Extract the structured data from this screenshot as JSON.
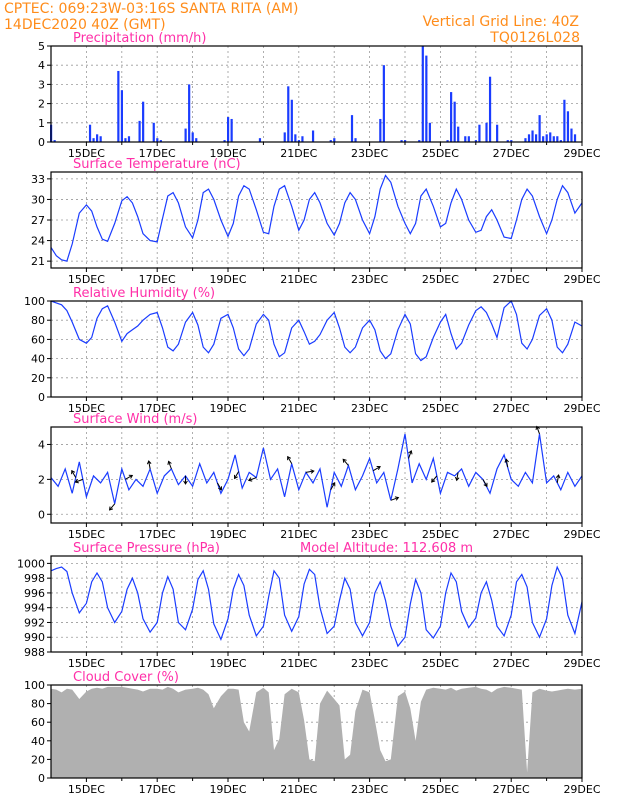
{
  "header": {
    "left_line1": "CPTEC:   069:23W-03:16S   SANTA RITA (AM)",
    "left_line2": "14DEC2020 40Z (GMT)",
    "right_line1": "Vertical Grid Line: 40Z",
    "right_line2": "TQ0126L028"
  },
  "colors": {
    "header": "#ff8c1a",
    "title": "#ff2fa8",
    "line": "#1a3cff",
    "cloud": "#b0b0b0"
  },
  "x_ticks": [
    "15DEC",
    "17DEC",
    "19DEC",
    "21DEC",
    "23DEC",
    "25DEC",
    "27DEC",
    "29DEC"
  ],
  "chart_data": [
    {
      "type": "bar",
      "title": "Precipitation (mm/h)",
      "ylim": [
        0,
        5
      ],
      "yticks": [
        "0",
        "1",
        "2",
        "3",
        "4",
        "5"
      ],
      "x_range_days": [
        14.0,
        29.0
      ],
      "x": [
        14.0,
        14.1,
        15.1,
        15.2,
        15.3,
        15.4,
        15.9,
        16.0,
        16.1,
        16.2,
        16.5,
        16.6,
        16.9,
        17.0,
        17.1,
        17.8,
        17.9,
        18.0,
        18.1,
        18.9,
        19.0,
        19.1,
        19.9,
        20.6,
        20.7,
        20.8,
        20.9,
        21.0,
        21.1,
        21.4,
        21.9,
        22.0,
        22.5,
        22.6,
        23.3,
        23.4,
        23.9,
        24.0,
        24.4,
        24.5,
        24.6,
        24.7,
        25.2,
        25.3,
        25.4,
        25.5,
        25.7,
        25.8,
        26.0,
        26.1,
        26.3,
        26.4,
        26.6,
        26.9,
        27.0,
        27.4,
        27.5,
        27.6,
        27.7,
        27.8,
        27.9,
        28.0,
        28.1,
        28.2,
        28.3,
        28.4,
        28.5,
        28.6,
        28.7,
        28.8
      ],
      "values": [
        0.9,
        0.1,
        0.9,
        0.2,
        0.4,
        0.3,
        3.7,
        2.7,
        0.2,
        0.3,
        1.1,
        2.1,
        1.0,
        0.2,
        0.1,
        0.7,
        3.0,
        0.5,
        0.2,
        0.1,
        1.3,
        1.2,
        0.2,
        0.5,
        2.9,
        2.2,
        0.4,
        0.1,
        0.3,
        0.6,
        0.1,
        0.2,
        1.4,
        0.2,
        1.2,
        4.0,
        0.1,
        0.1,
        0.1,
        5.0,
        4.5,
        1.0,
        0.1,
        2.6,
        2.1,
        0.8,
        0.3,
        0.3,
        0.1,
        0.9,
        1.0,
        3.4,
        0.9,
        0.1,
        0.1,
        0.2,
        0.4,
        0.6,
        0.4,
        1.4,
        0.3,
        0.4,
        0.5,
        0.3,
        0.3,
        0.1,
        2.2,
        1.6,
        0.7,
        0.4
      ]
    },
    {
      "type": "line",
      "title": "Surface Temperature (nC)",
      "ylim": [
        20,
        34
      ],
      "yticks": [
        "21",
        "24",
        "27",
        "30",
        "33"
      ],
      "x": [
        14.0,
        14.15,
        14.3,
        14.45,
        14.6,
        14.8,
        15.0,
        15.15,
        15.3,
        15.45,
        15.6,
        15.8,
        16.0,
        16.15,
        16.3,
        16.45,
        16.6,
        16.8,
        17.0,
        17.15,
        17.3,
        17.45,
        17.6,
        17.8,
        18.0,
        18.15,
        18.3,
        18.45,
        18.6,
        18.8,
        19.0,
        19.15,
        19.3,
        19.45,
        19.6,
        19.8,
        20.0,
        20.15,
        20.3,
        20.45,
        20.6,
        20.8,
        21.0,
        21.15,
        21.3,
        21.45,
        21.6,
        21.8,
        22.0,
        22.15,
        22.3,
        22.45,
        22.6,
        22.8,
        23.0,
        23.15,
        23.3,
        23.45,
        23.6,
        23.8,
        24.0,
        24.15,
        24.3,
        24.45,
        24.6,
        24.8,
        25.0,
        25.15,
        25.3,
        25.45,
        25.6,
        25.8,
        26.0,
        26.15,
        26.3,
        26.45,
        26.6,
        26.8,
        27.0,
        27.15,
        27.3,
        27.45,
        27.6,
        27.8,
        28.0,
        28.15,
        28.3,
        28.45,
        28.6,
        28.8,
        29.0
      ],
      "values": [
        23.0,
        21.8,
        21.2,
        21.0,
        23.5,
        28.0,
        29.2,
        28.3,
        26.0,
        24.2,
        23.9,
        26.5,
        29.8,
        30.4,
        29.5,
        27.5,
        25.0,
        24.0,
        23.8,
        27.2,
        30.5,
        31.0,
        29.5,
        26.0,
        24.4,
        27.0,
        31.0,
        31.5,
        30.0,
        27.0,
        24.6,
        26.5,
        30.5,
        32.0,
        31.5,
        28.5,
        25.2,
        25.0,
        29.0,
        31.5,
        32.0,
        29.0,
        25.5,
        27.0,
        30.0,
        31.0,
        29.5,
        26.5,
        24.8,
        26.5,
        29.5,
        31.0,
        30.0,
        27.0,
        25.0,
        27.5,
        31.5,
        33.5,
        32.5,
        29.0,
        26.5,
        25.0,
        26.5,
        30.5,
        31.5,
        29.0,
        26.0,
        26.5,
        29.5,
        31.5,
        30.0,
        27.0,
        25.2,
        25.5,
        27.5,
        28.5,
        27.0,
        24.5,
        24.3,
        27.0,
        30.0,
        31.5,
        30.5,
        27.5,
        25.0,
        27.0,
        30.0,
        32.0,
        31.0,
        28.0,
        29.5
      ]
    },
    {
      "type": "line",
      "title": "Relative Humidity (%)",
      "ylim": [
        0,
        100
      ],
      "yticks": [
        "0",
        "20",
        "40",
        "60",
        "80",
        "100"
      ],
      "x": [
        14.0,
        14.15,
        14.3,
        14.45,
        14.6,
        14.8,
        15.0,
        15.15,
        15.3,
        15.45,
        15.6,
        15.8,
        16.0,
        16.15,
        16.3,
        16.45,
        16.6,
        16.8,
        17.0,
        17.15,
        17.3,
        17.45,
        17.6,
        17.8,
        18.0,
        18.15,
        18.3,
        18.45,
        18.6,
        18.8,
        19.0,
        19.15,
        19.3,
        19.45,
        19.6,
        19.8,
        20.0,
        20.15,
        20.3,
        20.45,
        20.6,
        20.8,
        21.0,
        21.15,
        21.3,
        21.45,
        21.6,
        21.8,
        22.0,
        22.15,
        22.3,
        22.45,
        22.6,
        22.8,
        23.0,
        23.15,
        23.3,
        23.45,
        23.6,
        23.8,
        24.0,
        24.15,
        24.3,
        24.45,
        24.6,
        24.8,
        25.0,
        25.15,
        25.3,
        25.45,
        25.6,
        25.8,
        26.0,
        26.15,
        26.3,
        26.45,
        26.6,
        26.8,
        27.0,
        27.15,
        27.3,
        27.45,
        27.6,
        27.8,
        28.0,
        28.15,
        28.3,
        28.45,
        28.6,
        28.8,
        29.0
      ],
      "values": [
        100,
        98,
        96,
        90,
        78,
        60,
        56,
        62,
        82,
        92,
        95,
        78,
        58,
        66,
        70,
        74,
        80,
        86,
        88,
        72,
        52,
        48,
        55,
        78,
        88,
        75,
        52,
        46,
        55,
        82,
        86,
        72,
        50,
        43,
        50,
        76,
        86,
        80,
        55,
        42,
        46,
        72,
        80,
        68,
        55,
        58,
        65,
        80,
        88,
        72,
        52,
        46,
        52,
        72,
        80,
        70,
        48,
        40,
        45,
        70,
        86,
        76,
        45,
        38,
        42,
        62,
        78,
        86,
        66,
        50,
        56,
        75,
        90,
        94,
        88,
        76,
        62,
        93,
        100,
        86,
        56,
        50,
        60,
        85,
        92,
        80,
        52,
        46,
        55,
        78,
        74
      ]
    },
    {
      "type": "line",
      "title": "Surface Wind (m/s)",
      "ylim": [
        -0.5,
        5.0
      ],
      "yticks": [
        "0",
        "2",
        "4"
      ],
      "x": [
        14.0,
        14.2,
        14.4,
        14.6,
        14.8,
        15.0,
        15.2,
        15.4,
        15.6,
        15.8,
        16.0,
        16.2,
        16.4,
        16.6,
        16.8,
        17.0,
        17.2,
        17.4,
        17.6,
        17.8,
        18.0,
        18.2,
        18.4,
        18.6,
        18.8,
        19.0,
        19.2,
        19.4,
        19.6,
        19.8,
        20.0,
        20.2,
        20.4,
        20.6,
        20.8,
        21.0,
        21.2,
        21.4,
        21.6,
        21.8,
        22.0,
        22.2,
        22.4,
        22.6,
        22.8,
        23.0,
        23.2,
        23.4,
        23.6,
        23.8,
        24.0,
        24.2,
        24.4,
        24.6,
        24.8,
        25.0,
        25.2,
        25.4,
        25.6,
        25.8,
        26.0,
        26.2,
        26.4,
        26.6,
        26.8,
        27.0,
        27.2,
        27.4,
        27.6,
        27.8,
        28.0,
        28.2,
        28.4,
        28.6,
        28.8,
        29.0
      ],
      "values": [
        2.1,
        1.6,
        2.6,
        1.2,
        3.0,
        1.0,
        2.2,
        1.8,
        2.4,
        0.6,
        2.6,
        1.4,
        2.0,
        1.6,
        2.6,
        1.2,
        2.2,
        2.6,
        1.7,
        2.2,
        1.6,
        2.9,
        1.8,
        2.4,
        1.2,
        2.0,
        3.4,
        1.5,
        2.4,
        2.1,
        3.8,
        2.0,
        2.6,
        1.0,
        2.9,
        1.4,
        2.4,
        1.8,
        2.6,
        0.4,
        2.4,
        1.6,
        2.8,
        1.4,
        2.2,
        3.2,
        1.8,
        2.4,
        0.8,
        2.6,
        4.6,
        1.8,
        2.9,
        2.0,
        3.2,
        1.2,
        2.4,
        2.2,
        2.6,
        1.6,
        2.4,
        2.0,
        1.2,
        2.6,
        3.4,
        2.0,
        1.6,
        2.4,
        1.8,
        4.6,
        1.8,
        2.2,
        1.4,
        2.4,
        1.6,
        2.2
      ],
      "arrows": {
        "x": [
          14.7,
          14.9,
          15.8,
          16.1,
          16.8,
          17.4,
          17.8,
          18.7,
          19.3,
          19.8,
          20.8,
          21.2,
          21.9,
          22.4,
          23.1,
          23.6,
          24.1,
          24.9,
          25.5,
          26.2,
          26.9,
          27.8,
          28.3
        ],
        "dirs": [
          120,
          200,
          230,
          30,
          100,
          110,
          270,
          300,
          240,
          200,
          120,
          10,
          60,
          130,
          30,
          20,
          70,
          230,
          260,
          300,
          100,
          110,
          80
        ]
      }
    },
    {
      "type": "line",
      "title": "Surface Pressure (hPa)",
      "subtitle": "Model Altitude: 112.608 m",
      "ylim": [
        988,
        1001
      ],
      "yticks": [
        "988",
        "990",
        "992",
        "994",
        "996",
        "998",
        "1000"
      ],
      "x": [
        14.0,
        14.15,
        14.3,
        14.45,
        14.6,
        14.8,
        15.0,
        15.15,
        15.3,
        15.45,
        15.6,
        15.8,
        16.0,
        16.15,
        16.3,
        16.45,
        16.6,
        16.8,
        17.0,
        17.15,
        17.3,
        17.45,
        17.6,
        17.8,
        18.0,
        18.15,
        18.3,
        18.45,
        18.6,
        18.8,
        19.0,
        19.15,
        19.3,
        19.45,
        19.6,
        19.8,
        20.0,
        20.15,
        20.3,
        20.45,
        20.6,
        20.8,
        21.0,
        21.15,
        21.3,
        21.45,
        21.6,
        21.8,
        22.0,
        22.15,
        22.3,
        22.45,
        22.6,
        22.8,
        23.0,
        23.15,
        23.3,
        23.45,
        23.6,
        23.8,
        24.0,
        24.15,
        24.3,
        24.45,
        24.6,
        24.8,
        25.0,
        25.15,
        25.3,
        25.45,
        25.6,
        25.8,
        26.0,
        26.15,
        26.3,
        26.45,
        26.6,
        26.8,
        27.0,
        27.15,
        27.3,
        27.45,
        27.6,
        27.8,
        28.0,
        28.15,
        28.3,
        28.45,
        28.6,
        28.8,
        29.0
      ],
      "values": [
        999.0,
        999.3,
        999.5,
        998.9,
        996.0,
        993.3,
        994.6,
        997.5,
        998.7,
        997.5,
        994.0,
        992.0,
        993.5,
        996.5,
        998.0,
        996.0,
        992.5,
        990.7,
        992.0,
        996.0,
        998.2,
        996.5,
        992.0,
        991.0,
        993.8,
        997.8,
        999.0,
        996.5,
        991.8,
        989.7,
        992.5,
        996.5,
        998.5,
        997.0,
        993.0,
        990.2,
        991.5,
        995.5,
        999.0,
        998.0,
        993.0,
        990.8,
        992.8,
        997.2,
        999.2,
        998.5,
        994.0,
        990.5,
        991.5,
        995.0,
        998.0,
        996.5,
        992.0,
        990.2,
        992.0,
        996.0,
        997.5,
        995.0,
        991.5,
        988.8,
        990.0,
        994.5,
        997.8,
        996.0,
        991.0,
        989.9,
        991.5,
        996.0,
        998.7,
        997.5,
        993.5,
        991.3,
        992.6,
        996.0,
        997.5,
        995.0,
        991.5,
        990.2,
        993.0,
        997.5,
        998.5,
        996.8,
        992.0,
        990.0,
        992.5,
        997.0,
        999.5,
        998.0,
        993.0,
        990.5,
        994.8
      ]
    },
    {
      "type": "area",
      "title": "Cloud Cover (%)",
      "ylim": [
        0,
        100
      ],
      "yticks": [
        "0",
        "20",
        "40",
        "60",
        "80",
        "100"
      ],
      "x": [
        14.0,
        14.15,
        14.3,
        14.45,
        14.6,
        14.8,
        15.0,
        15.15,
        15.3,
        15.45,
        15.6,
        15.8,
        16.0,
        16.15,
        16.3,
        16.45,
        16.6,
        16.8,
        17.0,
        17.15,
        17.3,
        17.45,
        17.6,
        17.8,
        18.0,
        18.15,
        18.3,
        18.45,
        18.6,
        18.8,
        19.0,
        19.15,
        19.3,
        19.45,
        19.6,
        19.8,
        20.0,
        20.15,
        20.3,
        20.45,
        20.6,
        20.8,
        21.0,
        21.15,
        21.3,
        21.45,
        21.6,
        21.8,
        22.0,
        22.15,
        22.3,
        22.45,
        22.6,
        22.8,
        23.0,
        23.15,
        23.3,
        23.45,
        23.6,
        23.8,
        24.0,
        24.15,
        24.3,
        24.45,
        24.6,
        24.8,
        25.0,
        25.15,
        25.3,
        25.45,
        25.6,
        25.8,
        26.0,
        26.15,
        26.3,
        26.45,
        26.6,
        26.8,
        27.0,
        27.15,
        27.3,
        27.45,
        27.6,
        27.8,
        28.0,
        28.15,
        28.3,
        28.45,
        28.6,
        28.8,
        29.0
      ],
      "values": [
        96,
        95,
        92,
        96,
        95,
        85,
        93,
        96,
        97,
        96,
        98,
        98,
        98,
        97,
        96,
        95,
        93,
        96,
        96,
        95,
        98,
        96,
        92,
        95,
        96,
        97,
        95,
        90,
        75,
        88,
        96,
        96,
        95,
        60,
        50,
        92,
        97,
        92,
        30,
        42,
        90,
        96,
        92,
        62,
        20,
        18,
        80,
        94,
        85,
        78,
        20,
        25,
        72,
        95,
        92,
        62,
        30,
        18,
        20,
        88,
        93,
        75,
        40,
        82,
        95,
        97,
        96,
        95,
        97,
        94,
        96,
        97,
        98,
        96,
        95,
        92,
        96,
        98,
        97,
        96,
        95,
        6,
        92,
        96,
        94,
        93,
        94,
        95,
        96,
        95,
        96
      ]
    }
  ]
}
